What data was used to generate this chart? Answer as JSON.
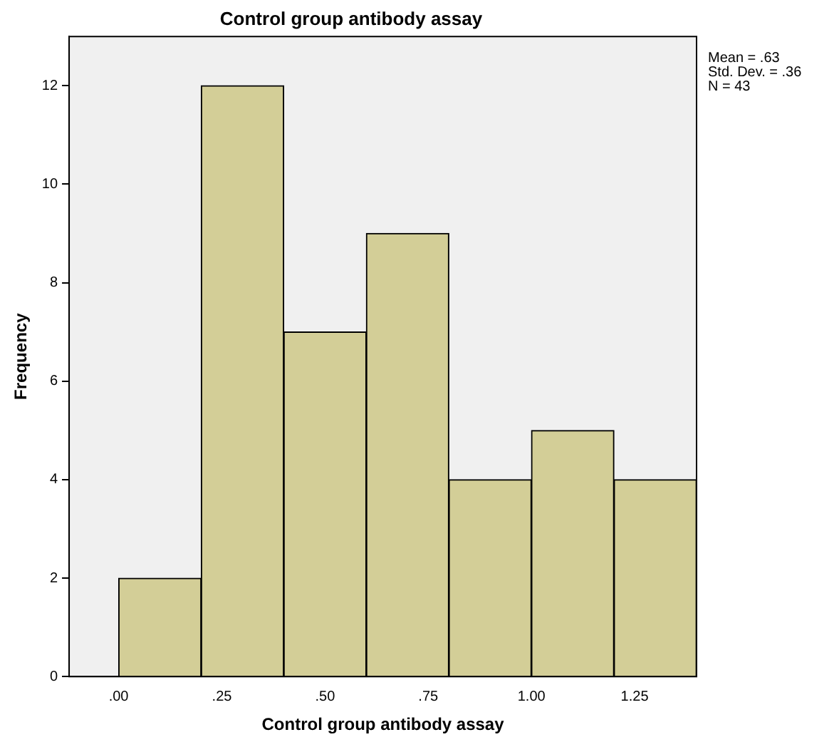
{
  "chart_data": {
    "type": "histogram",
    "title": "Control group antibody assay",
    "xlabel": "Control group antibody assay",
    "ylabel": "Frequency",
    "bins": [
      0,
      0.2,
      0.4,
      0.6,
      0.8,
      1.0,
      1.2,
      1.4
    ],
    "values": [
      2,
      12,
      7,
      9,
      4,
      5,
      4
    ],
    "color": "#d3ce97",
    "xlim": [
      -0.12,
      1.4
    ],
    "xticks": [
      {
        "value": 0,
        "label": ".00"
      },
      {
        "value": 0.25,
        "label": ".25"
      },
      {
        "value": 0.5,
        "label": ".50"
      },
      {
        "value": 0.75,
        "label": ".75"
      },
      {
        "value": 1,
        "label": "1.00"
      },
      {
        "value": 1.25,
        "label": "1.25"
      }
    ],
    "ylim": [
      0,
      13
    ],
    "yticks": [
      0,
      2,
      4,
      6,
      8,
      10,
      12
    ],
    "grid": false,
    "legend": false,
    "annotations": [
      "Mean = .63",
      "Std. Dev. = .36",
      "N = 43"
    ]
  }
}
